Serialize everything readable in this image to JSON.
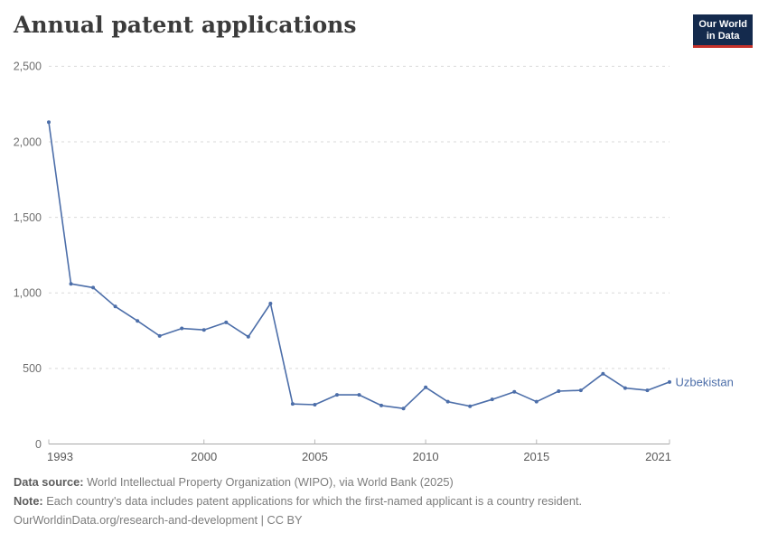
{
  "header": {
    "title": "Annual patent applications",
    "logo": {
      "line1": "Our World",
      "line2": "in Data",
      "bg_color": "#142a4d",
      "accent_color": "#c5312a",
      "text_color": "#ffffff"
    }
  },
  "chart_data": {
    "type": "line",
    "title": "Annual patent applications",
    "x": [
      1993,
      1994,
      1995,
      1996,
      1997,
      1998,
      1999,
      2000,
      2001,
      2002,
      2003,
      2004,
      2005,
      2006,
      2007,
      2008,
      2009,
      2010,
      2011,
      2012,
      2013,
      2014,
      2015,
      2016,
      2017,
      2018,
      2019,
      2020,
      2021
    ],
    "series": [
      {
        "name": "Uzbekistan",
        "color": "#4c6ea9",
        "values": [
          2130,
          1060,
          1035,
          910,
          815,
          715,
          765,
          755,
          805,
          710,
          930,
          265,
          260,
          325,
          325,
          255,
          235,
          375,
          280,
          250,
          295,
          345,
          280,
          350,
          355,
          465,
          370,
          355,
          410
        ]
      }
    ],
    "xlim": [
      1993,
      2021
    ],
    "ylim": [
      0,
      2500
    ],
    "x_ticks": [
      1993,
      2000,
      2005,
      2010,
      2015,
      2021
    ],
    "y_ticks": [
      0,
      500,
      1000,
      1500,
      2000,
      2500
    ],
    "y_tick_labels": [
      "0",
      "500",
      "1,000",
      "1,500",
      "2,000",
      "2,500"
    ],
    "grid": "horizontal-dashed",
    "legend_position": "end-of-line-label",
    "grid_color": "#d9d9d9",
    "axis_color": "#a8a8a8",
    "tick_mark_color": "#b8b8b8",
    "y_tick_label_color": "#6f6f6f",
    "x_tick_label_color": "#5a5a5a"
  },
  "footer": {
    "data_source_label": "Data source:",
    "data_source_text": " World Intellectual Property Organization (WIPO), via World Bank (2025)",
    "note_label": "Note:",
    "note_text": " Each country's data includes patent applications for which the first-named applicant is a country resident.",
    "license": "OurWorldinData.org/research-and-development | CC BY"
  }
}
